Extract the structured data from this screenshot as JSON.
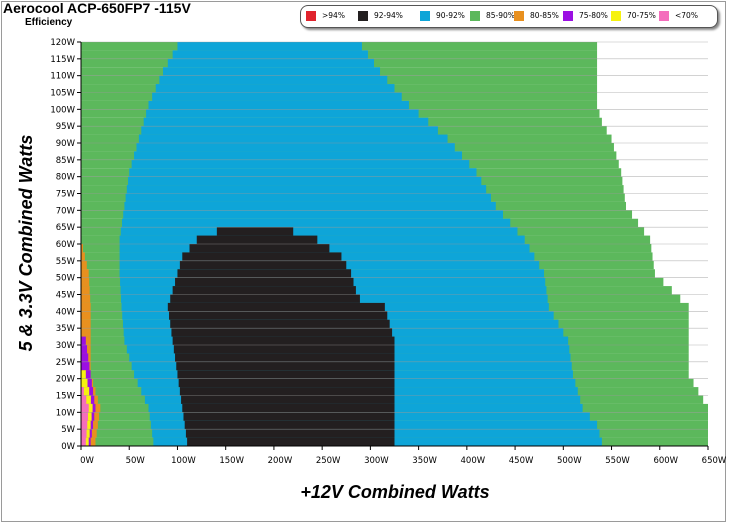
{
  "title": "Aerocool ACP-650FP7 -115V",
  "subtitle": "Efficiency",
  "legend": [
    {
      "label": ">94%",
      "color": "#e0232d"
    },
    {
      "label": "92-94%",
      "color": "#231f20"
    },
    {
      "label": "90-92%",
      "color": "#0ea5d8"
    },
    {
      "label": "85-90%",
      "color": "#5cb85c"
    },
    {
      "label": "80-85%",
      "color": "#e8901f"
    },
    {
      "label": "75-80%",
      "color": "#9b0fe3"
    },
    {
      "label": "70-75%",
      "color": "#f6f20f"
    },
    {
      "label": "<70%",
      "color": "#f46dbc"
    }
  ],
  "chart_data": {
    "type": "heatmap",
    "xlabel": "+12V Combined Watts",
    "ylabel": "5 & 3.3V Combined Watts",
    "xlim": [
      0,
      650
    ],
    "ylim": [
      0,
      120
    ],
    "x_ticks": [
      "0W",
      "50W",
      "100W",
      "150W",
      "200W",
      "250W",
      "300W",
      "350W",
      "400W",
      "450W",
      "500W",
      "550W",
      "600W",
      "650W"
    ],
    "y_ticks": [
      "0W",
      "5W",
      "10W",
      "15W",
      "20W",
      "25W",
      "30W",
      "35W",
      "40W",
      "45W",
      "50W",
      "55W",
      "60W",
      "65W",
      "70W",
      "75W",
      "80W",
      "85W",
      "90W",
      "95W",
      "100W",
      "105W",
      "110W",
      "115W",
      "120W"
    ],
    "grid": true,
    "regions": [
      {
        "band": "85-90%",
        "color": "#5cb85c",
        "boundary_right": [
          [
            0,
            650
          ],
          [
            10,
            650
          ],
          [
            20,
            630
          ],
          [
            30,
            630
          ],
          [
            40,
            630
          ],
          [
            50,
            595
          ],
          [
            60,
            590
          ],
          [
            70,
            565
          ],
          [
            80,
            560
          ],
          [
            90,
            550
          ],
          [
            95,
            540
          ],
          [
            100,
            535
          ],
          [
            105,
            535
          ],
          [
            110,
            535
          ],
          [
            115,
            535
          ],
          [
            120,
            535
          ]
        ]
      },
      {
        "band": "90-92%",
        "color": "#0ea5d8",
        "boundary_left": [
          [
            0,
            75
          ],
          [
            10,
            70
          ],
          [
            20,
            55
          ],
          [
            30,
            45
          ],
          [
            40,
            42
          ],
          [
            50,
            40
          ],
          [
            60,
            40
          ],
          [
            70,
            45
          ],
          [
            80,
            50
          ],
          [
            90,
            60
          ],
          [
            100,
            70
          ],
          [
            110,
            85
          ],
          [
            120,
            105
          ]
        ],
        "boundary_right": [
          [
            0,
            540
          ],
          [
            5,
            535
          ],
          [
            10,
            520
          ],
          [
            20,
            510
          ],
          [
            30,
            505
          ],
          [
            40,
            485
          ],
          [
            50,
            480
          ],
          [
            60,
            460
          ],
          [
            70,
            430
          ],
          [
            80,
            410
          ],
          [
            90,
            380
          ],
          [
            95,
            360
          ],
          [
            100,
            340
          ],
          [
            110,
            310
          ],
          [
            120,
            285
          ]
        ]
      },
      {
        "band": "92-94%",
        "color": "#231f20",
        "boundary_left": [
          [
            0,
            110
          ],
          [
            10,
            105
          ],
          [
            20,
            100
          ],
          [
            30,
            95
          ],
          [
            40,
            90
          ],
          [
            50,
            100
          ],
          [
            55,
            105
          ],
          [
            60,
            120
          ],
          [
            63,
            145
          ]
        ],
        "boundary_right": [
          [
            0,
            325
          ],
          [
            10,
            325
          ],
          [
            20,
            325
          ],
          [
            30,
            325
          ],
          [
            40,
            315
          ],
          [
            42,
            290
          ],
          [
            45,
            285
          ],
          [
            50,
            280
          ],
          [
            55,
            270
          ],
          [
            60,
            245
          ],
          [
            63,
            215
          ]
        ]
      },
      {
        "band": "80-85%",
        "color": "#e8901f",
        "boundary_right": [
          [
            0,
            15
          ],
          [
            10,
            20
          ],
          [
            20,
            10
          ],
          [
            30,
            10
          ],
          [
            40,
            10
          ],
          [
            50,
            8
          ],
          [
            60,
            0
          ]
        ]
      },
      {
        "band": "75-80%",
        "color": "#9b0fe3",
        "boundary_right": [
          [
            0,
            10
          ],
          [
            10,
            15
          ],
          [
            20,
            10
          ],
          [
            30,
            5
          ]
        ]
      },
      {
        "band": "70-75%",
        "color": "#f6f20f",
        "boundary_right": [
          [
            0,
            8
          ],
          [
            10,
            12
          ],
          [
            20,
            5
          ]
        ]
      },
      {
        "band": "<70%",
        "color": "#f46dbc",
        "boundary_right": [
          [
            0,
            5
          ],
          [
            10,
            8
          ],
          [
            15,
            3
          ]
        ]
      }
    ]
  }
}
